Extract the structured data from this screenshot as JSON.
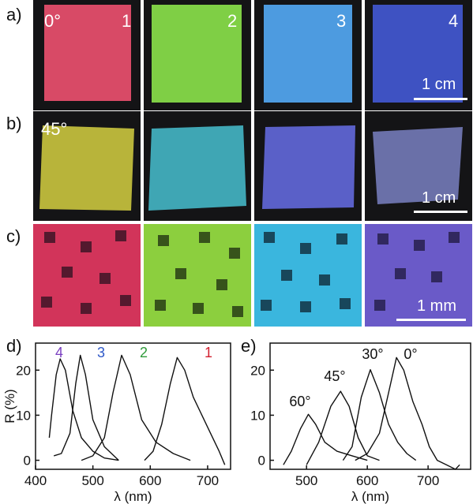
{
  "panel_labels": {
    "a": "a)",
    "b": "b)",
    "c": "c)",
    "d": "d)",
    "e": "e)"
  },
  "row_a": {
    "angle_label": "0°",
    "tiles": [
      {
        "label": "1",
        "color": "#d84a66"
      },
      {
        "label": "2",
        "color": "#7fcf45"
      },
      {
        "label": "3",
        "color": "#4d9be0"
      },
      {
        "label": "4",
        "color": "#3e52c2"
      }
    ],
    "scale_bar": "1 cm"
  },
  "row_b": {
    "angle_label": "45°",
    "tiles": [
      {
        "color": "#b8b43a"
      },
      {
        "color": "#3fa6b4"
      },
      {
        "color": "#5a60c8"
      },
      {
        "color": "#6a70a8"
      }
    ],
    "scale_bar": "1 cm"
  },
  "row_c": {
    "tiles": [
      {
        "color": "#d2345a"
      },
      {
        "color": "#8ccf3e"
      },
      {
        "color": "#3ab6de"
      },
      {
        "color": "#6a5ac8"
      }
    ],
    "scale_bar": "1 mm"
  },
  "chart_data": [
    {
      "type": "line",
      "panel": "d",
      "xlabel": "λ (nm)",
      "ylabel": "R (%)",
      "xlim": [
        400,
        740
      ],
      "ylim": [
        -2,
        26
      ],
      "xticks": [
        400,
        500,
        600,
        700
      ],
      "yticks": [
        0,
        10,
        20
      ],
      "series": [
        {
          "name": "4",
          "color": "#7a3fc0",
          "peak": 443,
          "height": 22.5,
          "baseline": 1,
          "x": [
            424,
            428,
            436,
            443,
            452,
            465,
            480,
            500,
            520,
            545
          ],
          "y": [
            5,
            10,
            19,
            22.5,
            20,
            11,
            5,
            2,
            0.5,
            0
          ]
        },
        {
          "name": "3",
          "color": "#2f59c8",
          "peak": 478,
          "height": 23.3,
          "baseline": 0,
          "x": [
            432,
            445,
            460,
            470,
            478,
            487,
            500,
            520,
            545
          ],
          "y": [
            1,
            1.5,
            6,
            17,
            23.3,
            19,
            9,
            3,
            0
          ]
        },
        {
          "name": "2",
          "color": "#2f9a3a",
          "peak": 550,
          "height": 23.3,
          "baseline": 0,
          "x": [
            480,
            500,
            520,
            535,
            550,
            565,
            585,
            610,
            640,
            670
          ],
          "y": [
            0,
            1,
            5,
            15,
            23.3,
            19,
            9,
            4,
            1.5,
            0
          ]
        },
        {
          "name": "1",
          "color": "#d21f2f",
          "peak": 647,
          "height": 22.8,
          "baseline": 0,
          "x": [
            590,
            605,
            620,
            635,
            647,
            660,
            675,
            690,
            705,
            720,
            730
          ],
          "y": [
            0,
            2,
            8,
            17,
            22.8,
            20,
            14,
            10,
            6,
            2,
            -1
          ]
        }
      ]
    },
    {
      "type": "line",
      "panel": "e",
      "xlabel": "λ (nm)",
      "ylabel": "",
      "xlim": [
        440,
        770
      ],
      "ylim": [
        -2,
        26
      ],
      "xticks": [
        500,
        600,
        700
      ],
      "yticks": [
        0,
        10,
        20
      ],
      "series": [
        {
          "name": "60°",
          "peak": 503,
          "height": 10.2,
          "x": [
            462,
            475,
            490,
            503,
            515,
            530,
            550,
            575,
            600
          ],
          "y": [
            -1,
            2,
            7,
            10.2,
            8,
            4,
            2,
            1,
            0
          ]
        },
        {
          "name": "45°",
          "peak": 556,
          "height": 15.3,
          "x": [
            500,
            520,
            540,
            556,
            570,
            585,
            600,
            620
          ],
          "y": [
            -1,
            4,
            12,
            15.3,
            12,
            5,
            1,
            0
          ]
        },
        {
          "name": "30°",
          "peak": 605,
          "height": 20.1,
          "x": [
            560,
            575,
            590,
            605,
            620,
            635,
            650,
            665,
            680
          ],
          "y": [
            0,
            3,
            14,
            20.1,
            15,
            8,
            4,
            1.5,
            0
          ]
        },
        {
          "name": "0°",
          "peak": 648,
          "height": 22.8,
          "x": [
            580,
            600,
            620,
            635,
            648,
            660,
            675,
            690,
            702,
            715,
            730,
            745,
            752
          ],
          "y": [
            0,
            1.5,
            6,
            15,
            22.8,
            20,
            13,
            8,
            3,
            0,
            -1,
            -2,
            -1
          ]
        }
      ]
    }
  ]
}
